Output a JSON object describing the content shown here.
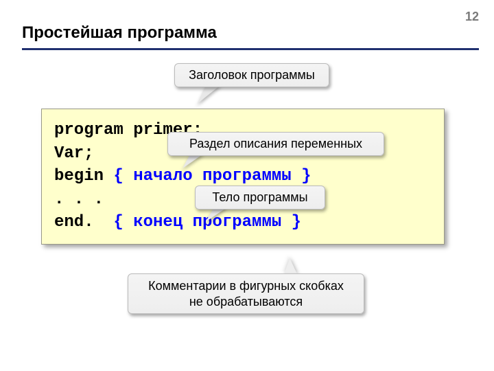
{
  "page_number": "12",
  "title": "Простейшая программа",
  "colors": {
    "background": "#ffffff",
    "title_underline": "#203070",
    "codebox_bg": "#ffffcc",
    "code_keyword": "#000000",
    "code_comment": "#0000ff",
    "callout_bg": "#eeeeee",
    "page_number_color": "#7a7a7a"
  },
  "code": {
    "line1": {
      "keyword": "program primer;"
    },
    "line2": {
      "keyword": "Var;"
    },
    "line3": {
      "keyword": "begin ",
      "comment": "{ начало программы }"
    },
    "line4": {
      "keyword": ". . ."
    },
    "line5": {
      "keyword": "end.  ",
      "comment": "{ конец программы }"
    }
  },
  "callouts": {
    "c1": "Заголовок программы",
    "c2": "Раздел описания переменных",
    "c3": "Тело программы",
    "c4_line1": "Комментарии в фигурных скобках",
    "c4_line2": "не обрабатываются"
  }
}
